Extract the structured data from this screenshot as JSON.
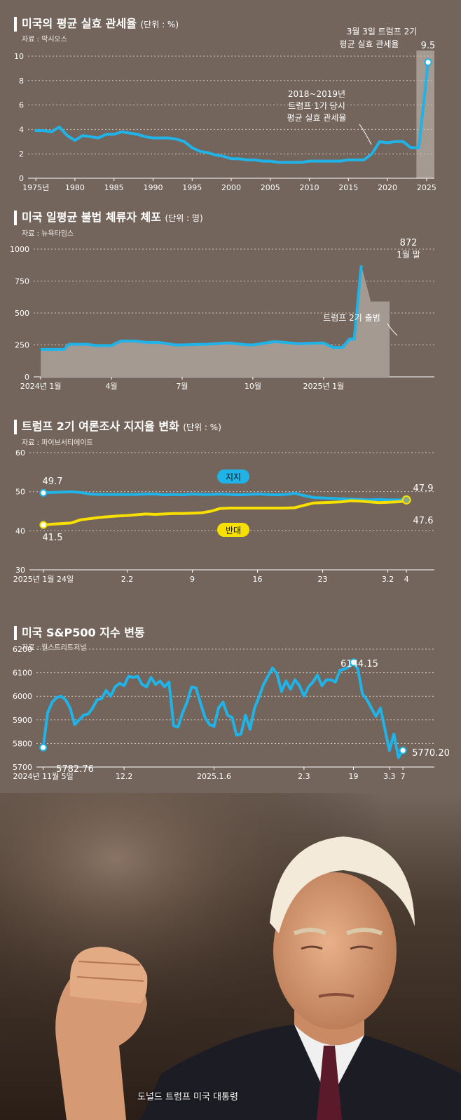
{
  "charts": [
    {
      "id": "tariff",
      "title": "미국의 평균 실효 관세율",
      "unit": "(단위 : %)",
      "source": "자료 : 악시오스",
      "annotations": {
        "recent_label_1": "3월 3일 트럼프 2기",
        "recent_label_2": "평균 실효 관세율",
        "recent_value": "9.5",
        "trump1_label_1": "2018~2019년",
        "trump1_label_2": "트럼프 1기 당시",
        "trump1_label_3": "평균 실효 관세율"
      }
    },
    {
      "id": "arrests",
      "title": "미국 일평균 불법 체류자 체포",
      "unit": "(단위 : 명)",
      "source": "자료 : 뉴욕타임스",
      "annotations": {
        "peak_value": "872",
        "peak_label": "1월 말",
        "inaug_label": "트럼프 2기 출범"
      }
    },
    {
      "id": "approval",
      "title": "트럼프 2기 여론조사 지지율 변화",
      "unit": "(단위 : %)",
      "source": "자료 : 파이브서티에이트",
      "annotations": {
        "approve_start": "49.7",
        "disapprove_start": "41.5",
        "approve_end": "47.9",
        "disapprove_end": "47.6"
      }
    },
    {
      "id": "sp500",
      "title": "미국 S&P500 지수 변동",
      "unit": "",
      "source": "자료 : 월스트리트저널",
      "annotations": {
        "start_value": "5782.76",
        "peak_value": "6144.15",
        "end_value": "5770.20"
      }
    }
  ],
  "photo": {
    "caption": "도널드 트럼프 미국 대통령"
  },
  "colors": {
    "line_blue": "#1fb3e8",
    "line_yellow": "#f7e000",
    "highlight": "#a59a91",
    "area_fill": "#a59a91"
  },
  "chart_data": [
    {
      "type": "line",
      "title": "미국의 평균 실효 관세율",
      "ylim": [
        0,
        10
      ],
      "yticks": [
        0,
        2,
        4,
        6,
        8,
        10
      ],
      "xlim": [
        1974,
        2026
      ],
      "xticks": [
        1975,
        1980,
        1985,
        1990,
        1995,
        2000,
        2005,
        2010,
        2015,
        2020,
        2025
      ],
      "xtick_labels": [
        "1975년",
        "1980",
        "1985",
        "1990",
        "1995",
        "2000",
        "2005",
        "2010",
        "2015",
        "2020",
        "2025"
      ],
      "highlight_range": [
        2023.7,
        2026
      ],
      "series": [
        {
          "x": [
            1975,
            1976,
            1977,
            1978,
            1979,
            1980,
            1981,
            1982,
            1983,
            1984,
            1985,
            1986,
            1987,
            1988,
            1989,
            1990,
            1991,
            1992,
            1993,
            1994,
            1995,
            1996,
            1997,
            1998,
            1999,
            2000,
            2001,
            2002,
            2003,
            2004,
            2005,
            2006,
            2007,
            2008,
            2009,
            2010,
            2011,
            2012,
            2013,
            2014,
            2015,
            2016,
            2017,
            2018,
            2019,
            2020,
            2021,
            2022,
            2023,
            2024,
            2025.2
          ],
          "y": [
            3.9,
            3.9,
            3.8,
            4.2,
            3.5,
            3.1,
            3.5,
            3.4,
            3.3,
            3.6,
            3.6,
            3.8,
            3.7,
            3.6,
            3.4,
            3.3,
            3.3,
            3.3,
            3.2,
            3.0,
            2.5,
            2.2,
            2.1,
            1.9,
            1.8,
            1.6,
            1.6,
            1.5,
            1.5,
            1.4,
            1.4,
            1.3,
            1.3,
            1.3,
            1.3,
            1.4,
            1.4,
            1.4,
            1.4,
            1.4,
            1.5,
            1.5,
            1.5,
            2.0,
            3.0,
            2.9,
            3.0,
            3.0,
            2.5,
            2.5,
            9.5
          ]
        }
      ]
    },
    {
      "type": "area",
      "title": "미국 일평균 불법 체류자 체포",
      "ylim": [
        0,
        1000
      ],
      "yticks": [
        0,
        250,
        500,
        750,
        1000
      ],
      "xlim": [
        -0.3,
        16.7
      ],
      "xticks": [
        0,
        3,
        6,
        9,
        12
      ],
      "xtick_labels": [
        "2024년 1월",
        "4월",
        "7월",
        "10월",
        "2025년 1월"
      ],
      "series": [
        {
          "x": [
            0,
            1,
            1.2,
            2,
            2.3,
            3,
            3.4,
            4,
            4.5,
            5,
            5.7,
            6,
            6.8,
            7,
            7.9,
            8,
            8.8,
            9,
            9.9,
            10,
            10.9,
            11,
            11.9,
            12,
            12.4,
            12.8,
            13.1,
            13.3,
            13.6,
            14,
            14.8
          ],
          "y": [
            215,
            215,
            255,
            255,
            245,
            245,
            280,
            280,
            270,
            270,
            250,
            250,
            255,
            255,
            265,
            265,
            250,
            250,
            275,
            275,
            260,
            260,
            265,
            265,
            230,
            230,
            295,
            295,
            872,
            590,
            590
          ]
        }
      ]
    },
    {
      "type": "line",
      "title": "트럼프 2기 여론조사 지지율 변화",
      "ylim": [
        30,
        60
      ],
      "yticks": [
        30,
        40,
        50,
        60
      ],
      "xlim": [
        -1.5,
        42
      ],
      "xticks": [
        0,
        9,
        16,
        23,
        30,
        37,
        39
      ],
      "xtick_labels": [
        "2025년 1월 24일",
        "2.2",
        "9",
        "16",
        "23",
        "3.2",
        "4"
      ],
      "series": [
        {
          "name": "지지",
          "x": [
            0,
            1,
            3,
            4,
            5,
            6,
            7,
            8,
            9,
            10,
            11,
            12,
            13,
            14,
            15,
            16,
            17,
            18,
            19,
            20,
            21,
            22,
            23,
            24,
            25,
            26,
            27,
            28,
            29,
            30,
            31,
            32,
            33,
            34,
            35,
            36,
            37,
            38,
            39
          ],
          "y": [
            49.7,
            49.8,
            50.0,
            49.8,
            49.4,
            49.3,
            49.3,
            49.3,
            49.3,
            49.3,
            49.4,
            49.4,
            49.2,
            49.3,
            49.2,
            49.4,
            49.3,
            49.3,
            49.4,
            49.3,
            49.2,
            49.3,
            49.4,
            49.3,
            49.2,
            49.3,
            49.6,
            49.0,
            48.5,
            48.4,
            48.3,
            48.2,
            48.1,
            48.0,
            47.9,
            48.0,
            47.9,
            47.9,
            47.9
          ]
        },
        {
          "name": "반대",
          "x": [
            0,
            1,
            3,
            4,
            5,
            6,
            7,
            8,
            9,
            10,
            11,
            12,
            13,
            14,
            15,
            16,
            17,
            18,
            19,
            20,
            21,
            22,
            23,
            24,
            25,
            26,
            27,
            28,
            29,
            30,
            31,
            32,
            33,
            34,
            35,
            36,
            37,
            38,
            39
          ],
          "y": [
            41.5,
            41.7,
            42.0,
            42.8,
            43.1,
            43.4,
            43.6,
            43.8,
            43.9,
            44.1,
            44.3,
            44.2,
            44.3,
            44.4,
            44.4,
            44.5,
            44.6,
            45.0,
            45.7,
            45.8,
            45.8,
            45.8,
            45.8,
            45.8,
            45.8,
            45.8,
            45.9,
            46.5,
            47.1,
            47.2,
            47.3,
            47.4,
            47.7,
            47.6,
            47.4,
            47.2,
            47.3,
            47.4,
            47.6
          ]
        }
      ]
    },
    {
      "type": "line",
      "title": "미국 S&P500 지수 변동",
      "ylim": [
        5700,
        6200
      ],
      "yticks": [
        5700,
        5800,
        5900,
        6000,
        6100,
        6200
      ],
      "xlim": [
        -1.5,
        87
      ],
      "xticks": [
        0,
        18,
        38,
        58,
        69,
        77,
        80
      ],
      "xtick_labels": [
        "2024년 11월 5일",
        "12.2",
        "2025.1.6",
        "2.3",
        "19",
        "3.3",
        "7"
      ],
      "series": [
        {
          "x": [
            0,
            1,
            2,
            3,
            4,
            5,
            6,
            7,
            8,
            9,
            10,
            11,
            12,
            13,
            14,
            15,
            16,
            17,
            18,
            19,
            20,
            21,
            22,
            23,
            24,
            25,
            26,
            27,
            28,
            29,
            30,
            31,
            32,
            33,
            34,
            35,
            36,
            37,
            38,
            39,
            40,
            41,
            42,
            43,
            44,
            45,
            46,
            47,
            48,
            49,
            50,
            51,
            52,
            53,
            54,
            55,
            56,
            57,
            58,
            59,
            60,
            61,
            62,
            63,
            64,
            65,
            66,
            67,
            68,
            69,
            70,
            71,
            72,
            73,
            74,
            75,
            76,
            77,
            78,
            79,
            80
          ],
          "y": [
            5782.76,
            5930,
            5975,
            5995,
            6000,
            5985,
            5950,
            5880,
            5900,
            5920,
            5925,
            5950,
            5985,
            5990,
            6025,
            6000,
            6040,
            6055,
            6045,
            6085,
            6080,
            6085,
            6050,
            6040,
            6080,
            6050,
            6065,
            6040,
            6060,
            5875,
            5870,
            5930,
            5975,
            6040,
            6035,
            5970,
            5910,
            5880,
            5872,
            5950,
            5975,
            5920,
            5910,
            5835,
            5840,
            5920,
            5860,
            5950,
            5997,
            6050,
            6085,
            6120,
            6095,
            6020,
            6065,
            6030,
            6070,
            6045,
            6000,
            6040,
            6060,
            6090,
            6045,
            6070,
            6070,
            6060,
            6110,
            6115,
            6125,
            6144.15,
            6115,
            6010,
            5985,
            5950,
            5915,
            5950,
            5860,
            5770,
            5840,
            5740,
            5770.2
          ]
        }
      ]
    }
  ]
}
